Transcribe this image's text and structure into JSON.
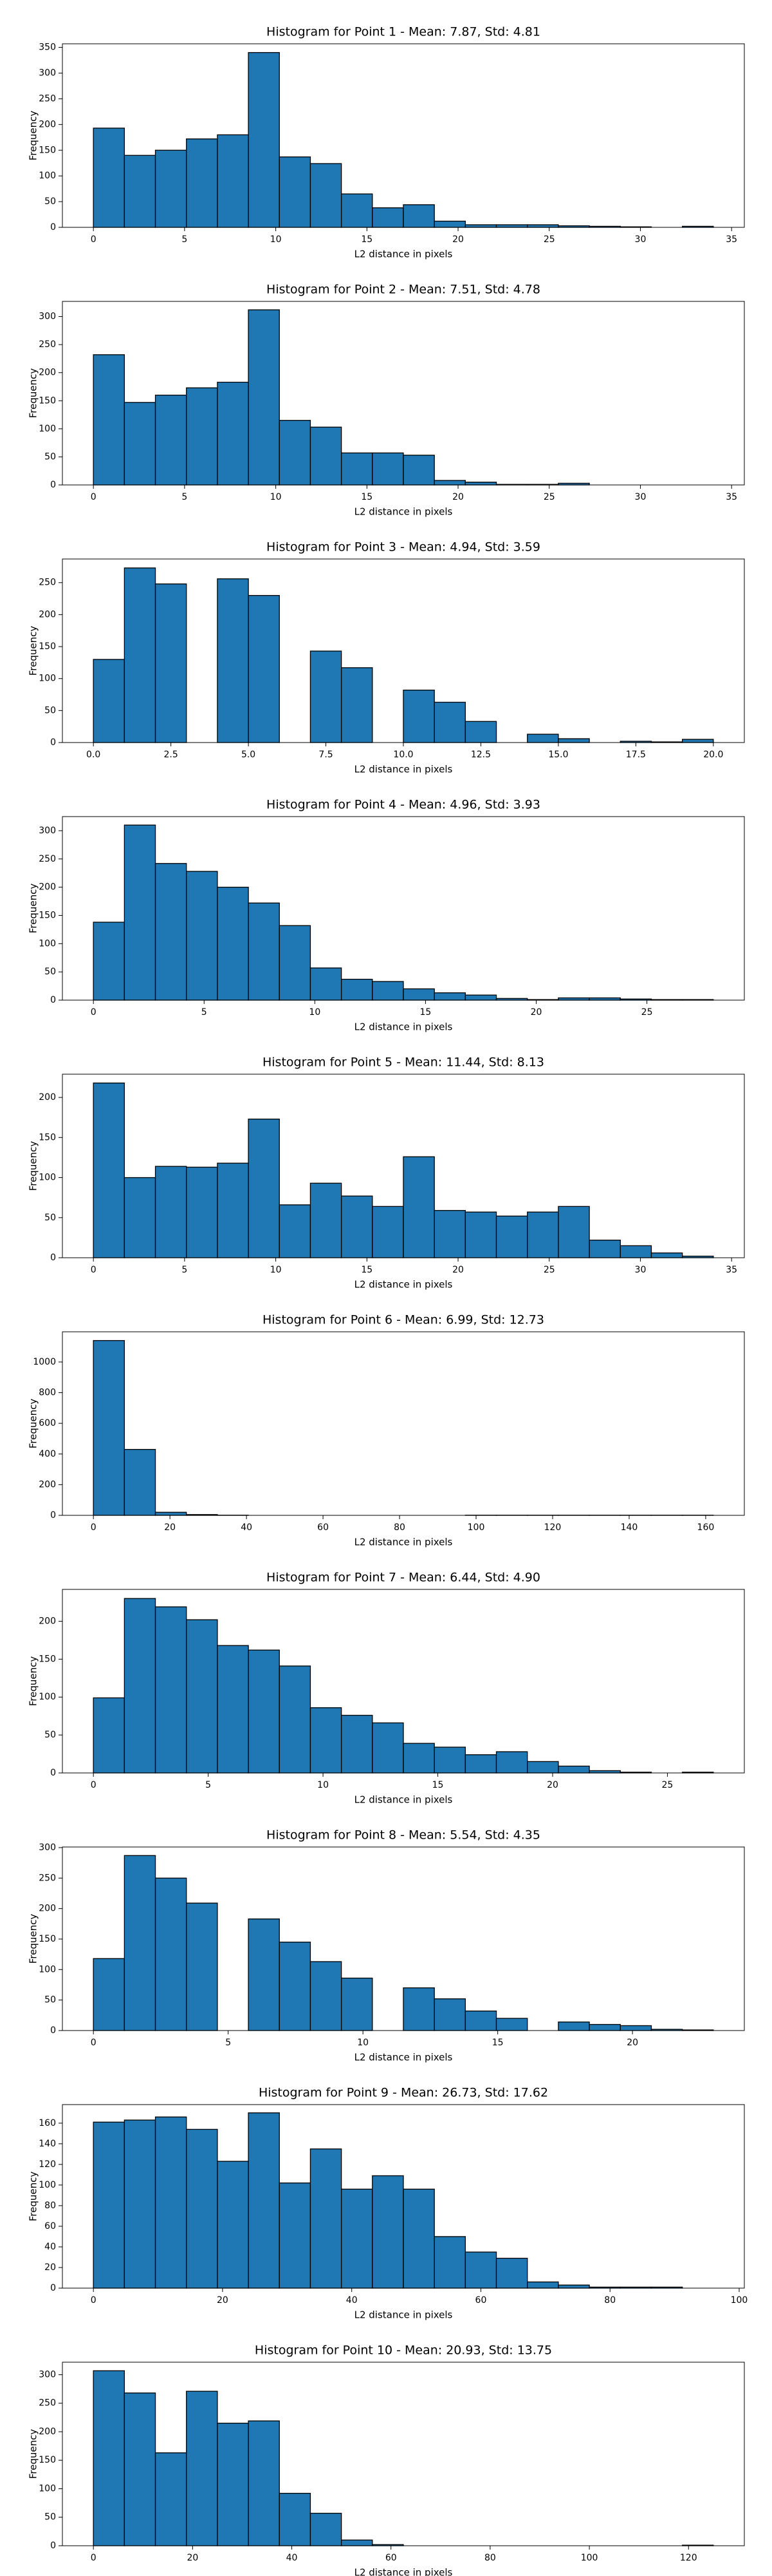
{
  "chart_data": [
    {
      "type": "histogram",
      "title": "Histogram for Point 1 - Mean: 7.87, Std: 4.81",
      "xlabel": "L2 distance in pixels",
      "ylabel": "Frequency",
      "color": "#1f77b4",
      "bins": [
        0,
        1.7,
        3.4,
        5.1,
        6.8,
        8.5,
        10.2,
        11.9,
        13.6,
        15.3,
        17,
        18.7,
        20.4,
        22.1,
        23.8,
        25.5,
        27.2,
        28.9,
        30.6,
        32.3,
        34
      ],
      "values": [
        193,
        140,
        150,
        172,
        180,
        340,
        137,
        124,
        65,
        38,
        44,
        12,
        5,
        5,
        5,
        3,
        2,
        1,
        0,
        2
      ],
      "xlim": [
        -1.7,
        35.7
      ],
      "ylim": [
        0,
        357
      ],
      "xticks": [
        0,
        5,
        10,
        15,
        20,
        25,
        30,
        35
      ],
      "yticks": [
        0,
        50,
        100,
        150,
        200,
        250,
        300,
        350
      ]
    },
    {
      "type": "histogram",
      "title": "Histogram for Point 2 - Mean: 7.51, Std: 4.78",
      "xlabel": "L2 distance in pixels",
      "ylabel": "Frequency",
      "color": "#1f77b4",
      "bins": [
        0,
        1.7,
        3.4,
        5.1,
        6.8,
        8.5,
        10.2,
        11.9,
        13.6,
        15.3,
        17,
        18.7,
        20.4,
        22.1,
        23.8,
        25.5,
        27.2,
        28.9,
        30.6,
        32.3,
        34
      ],
      "values": [
        232,
        147,
        160,
        173,
        183,
        312,
        115,
        103,
        57,
        57,
        53,
        8,
        5,
        1,
        1,
        3,
        0,
        0,
        0,
        0
      ],
      "xlim": [
        -1.7,
        35.7
      ],
      "ylim": [
        0,
        327
      ],
      "xticks": [
        0,
        5,
        10,
        15,
        20,
        25,
        30,
        35
      ],
      "yticks": [
        0,
        50,
        100,
        150,
        200,
        250,
        300
      ]
    },
    {
      "type": "histogram",
      "title": "Histogram for Point 3 - Mean: 4.94, Std: 3.59",
      "xlabel": "L2 distance in pixels",
      "ylabel": "Frequency",
      "color": "#1f77b4",
      "bins": [
        0,
        1,
        2,
        3,
        4,
        5,
        6,
        7,
        8,
        9,
        10,
        11,
        12,
        13,
        14,
        15,
        16,
        17,
        18,
        19,
        20
      ],
      "values": [
        130,
        273,
        248,
        0,
        256,
        230,
        0,
        143,
        117,
        0,
        82,
        63,
        33,
        0,
        13,
        6,
        0,
        2,
        1,
        5
      ],
      "xlim": [
        -1,
        21
      ],
      "ylim": [
        0,
        287
      ],
      "xticks": [
        {
          "value": 0,
          "label": "0.0"
        },
        {
          "value": 2.5,
          "label": "2.5"
        },
        {
          "value": 5,
          "label": "5.0"
        },
        {
          "value": 7.5,
          "label": "7.5"
        },
        {
          "value": 10,
          "label": "10.0"
        },
        {
          "value": 12.5,
          "label": "12.5"
        },
        {
          "value": 15,
          "label": "15.0"
        },
        {
          "value": 17.5,
          "label": "17.5"
        },
        {
          "value": 20,
          "label": "20.0"
        }
      ],
      "yticks": [
        0,
        50,
        100,
        150,
        200,
        250
      ]
    },
    {
      "type": "histogram",
      "title": "Histogram for Point 4 - Mean: 4.96, Std: 3.93",
      "xlabel": "L2 distance in pixels",
      "ylabel": "Frequency",
      "color": "#1f77b4",
      "bins": [
        0,
        1.4,
        2.8,
        4.2,
        5.6,
        7,
        8.4,
        9.8,
        11.2,
        12.6,
        14,
        15.4,
        16.8,
        18.2,
        19.6,
        21,
        22.4,
        23.8,
        25.2,
        26.6,
        28
      ],
      "values": [
        138,
        310,
        242,
        228,
        200,
        172,
        132,
        57,
        37,
        33,
        20,
        13,
        9,
        3,
        1,
        4,
        4,
        2,
        1,
        1
      ],
      "xlim": [
        -1.4,
        29.4
      ],
      "ylim": [
        0,
        325
      ],
      "xticks": [
        0,
        5,
        10,
        15,
        20,
        25
      ],
      "yticks": [
        0,
        50,
        100,
        150,
        200,
        250,
        300
      ]
    },
    {
      "type": "histogram",
      "title": "Histogram for Point 5 - Mean: 11.44, Std: 8.13",
      "xlabel": "L2 distance in pixels",
      "ylabel": "Frequency",
      "color": "#1f77b4",
      "bins": [
        0,
        1.7,
        3.4,
        5.1,
        6.8,
        8.5,
        10.2,
        11.9,
        13.6,
        15.3,
        17,
        18.7,
        20.4,
        22.1,
        23.8,
        25.5,
        27.2,
        28.9,
        30.6,
        32.3,
        34
      ],
      "values": [
        218,
        100,
        114,
        113,
        118,
        173,
        66,
        93,
        77,
        64,
        126,
        59,
        57,
        52,
        57,
        64,
        22,
        15,
        6,
        2
      ],
      "xlim": [
        -1.7,
        35.7
      ],
      "ylim": [
        0,
        229
      ],
      "xticks": [
        0,
        5,
        10,
        15,
        20,
        25,
        30,
        35
      ],
      "yticks": [
        0,
        50,
        100,
        150,
        200
      ]
    },
    {
      "type": "histogram",
      "title": "Histogram for Point 6 - Mean: 6.99, Std: 12.73",
      "xlabel": "L2 distance in pixels",
      "ylabel": "Frequency",
      "color": "#1f77b4",
      "bins": [
        0,
        8.1,
        16.2,
        24.3,
        32.4,
        40.5,
        48.6,
        56.7,
        64.8,
        72.9,
        81,
        89.1,
        97.2,
        105.3,
        113.4,
        121.5,
        129.6,
        137.7,
        145.8,
        153.9,
        162
      ],
      "values": [
        1140,
        430,
        20,
        5,
        1,
        0,
        0,
        0,
        0,
        0,
        0,
        0,
        1,
        1,
        1,
        1,
        1,
        1,
        1,
        1
      ],
      "xlim": [
        -8.1,
        170.1
      ],
      "ylim": [
        0,
        1197
      ],
      "xticks": [
        0,
        20,
        40,
        60,
        80,
        100,
        120,
        140,
        160
      ],
      "yticks": [
        0,
        200,
        400,
        600,
        800,
        1000
      ]
    },
    {
      "type": "histogram",
      "title": "Histogram for Point 7 - Mean: 6.44, Std: 4.90",
      "xlabel": "L2 distance in pixels",
      "ylabel": "Frequency",
      "color": "#1f77b4",
      "bins": [
        0,
        1.35,
        2.7,
        4.05,
        5.4,
        6.75,
        8.1,
        9.45,
        10.8,
        12.15,
        13.5,
        14.85,
        16.2,
        17.55,
        18.9,
        20.25,
        21.6,
        22.95,
        24.3,
        25.65,
        27
      ],
      "values": [
        99,
        230,
        219,
        202,
        168,
        162,
        141,
        86,
        76,
        66,
        39,
        34,
        24,
        28,
        15,
        9,
        3,
        1,
        0,
        1
      ],
      "xlim": [
        -1.35,
        28.35
      ],
      "ylim": [
        0,
        242
      ],
      "xticks": [
        0,
        5,
        10,
        15,
        20,
        25
      ],
      "yticks": [
        0,
        50,
        100,
        150,
        200
      ]
    },
    {
      "type": "histogram",
      "title": "Histogram for Point 8 - Mean: 5.54, Std: 4.35",
      "xlabel": "L2 distance in pixels",
      "ylabel": "Frequency",
      "color": "#1f77b4",
      "bins": [
        0,
        1.15,
        2.3,
        3.45,
        4.6,
        5.75,
        6.9,
        8.05,
        9.2,
        10.35,
        11.5,
        12.65,
        13.8,
        14.95,
        16.1,
        17.25,
        18.4,
        19.55,
        20.7,
        21.85,
        23
      ],
      "values": [
        118,
        287,
        250,
        209,
        0,
        183,
        145,
        113,
        86,
        0,
        70,
        52,
        32,
        20,
        0,
        14,
        10,
        8,
        2,
        1
      ],
      "xlim": [
        -1.15,
        24.15
      ],
      "ylim": [
        0,
        301
      ],
      "xticks": [
        0,
        5,
        10,
        15,
        20
      ],
      "yticks": [
        0,
        50,
        100,
        150,
        200,
        250,
        300
      ]
    },
    {
      "type": "histogram",
      "title": "Histogram for Point 9 - Mean: 26.73, Std: 17.62",
      "xlabel": "L2 distance in pixels",
      "ylabel": "Frequency",
      "color": "#1f77b4",
      "bins": [
        0,
        4.8,
        9.6,
        14.4,
        19.2,
        24,
        28.8,
        33.6,
        38.4,
        43.2,
        48,
        52.8,
        57.6,
        62.4,
        67.2,
        72,
        76.8,
        81.6,
        86.4,
        91.2,
        96
      ],
      "values": [
        161,
        163,
        166,
        154,
        123,
        170,
        102,
        135,
        96,
        109,
        96,
        50,
        35,
        29,
        6,
        3,
        1,
        1,
        1,
        0
      ],
      "xlim": [
        -4.8,
        100.8
      ],
      "ylim": [
        0,
        178
      ],
      "xticks": [
        0,
        20,
        40,
        60,
        80,
        100
      ],
      "yticks": [
        0,
        20,
        40,
        60,
        80,
        100,
        120,
        140,
        160
      ]
    },
    {
      "type": "histogram",
      "title": "Histogram for Point 10 - Mean: 20.93, Std: 13.75",
      "xlabel": "L2 distance in pixels",
      "ylabel": "Frequency",
      "color": "#1f77b4",
      "bins": [
        0,
        6.25,
        12.5,
        18.75,
        25,
        31.25,
        37.5,
        43.75,
        50,
        56.25,
        62.5,
        68.75,
        75,
        81.25,
        87.5,
        93.75,
        100,
        106.25,
        112.5,
        118.75,
        125
      ],
      "values": [
        307,
        268,
        163,
        271,
        215,
        219,
        92,
        57,
        10,
        2,
        0,
        0,
        0,
        0,
        0,
        0,
        0,
        0,
        0,
        1
      ],
      "xlim": [
        -6.25,
        131.25
      ],
      "ylim": [
        0,
        322
      ],
      "xticks": [
        0,
        20,
        40,
        60,
        80,
        100,
        120
      ],
      "yticks": [
        0,
        50,
        100,
        150,
        200,
        250,
        300
      ]
    }
  ]
}
